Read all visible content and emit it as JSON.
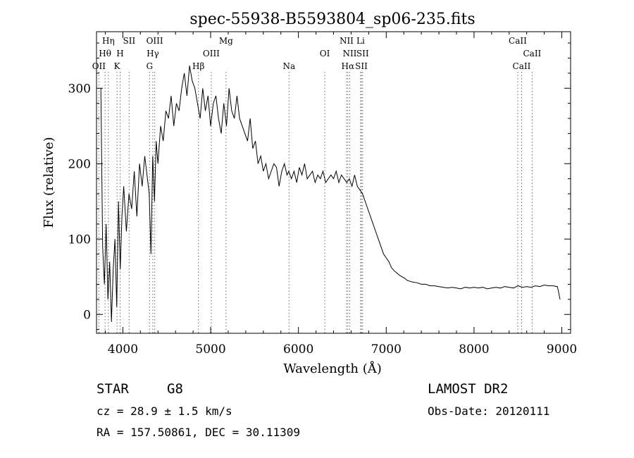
{
  "chart_data": {
    "type": "line",
    "title": "spec-55938-B5593804_sp06-235.fits",
    "xlabel": "Wavelength (Å)",
    "ylabel": "Flux (relative)",
    "xlim": [
      3700,
      9100
    ],
    "ylim": [
      -25,
      375
    ],
    "x_ticks": [
      "4000",
      "5000",
      "6000",
      "7000",
      "8000",
      "9000"
    ],
    "y_ticks": [
      "0",
      "100",
      "200",
      "300"
    ],
    "grid": false,
    "series": [
      {
        "x": [
          3750,
          3770,
          3790,
          3810,
          3830,
          3850,
          3870,
          3890,
          3910,
          3930,
          3950,
          3970,
          3990,
          4010,
          4040,
          4070,
          4100,
          4130,
          4160,
          4190,
          4220,
          4250,
          4280,
          4300,
          4320,
          4340,
          4360,
          4380,
          4400,
          4430,
          4460,
          4490,
          4520,
          4550,
          4580,
          4610,
          4640,
          4670,
          4700,
          4730,
          4760,
          4790,
          4820,
          4850,
          4880,
          4910,
          4940,
          4970,
          5000,
          5030,
          5060,
          5090,
          5120,
          5150,
          5180,
          5210,
          5240,
          5270,
          5300,
          5330,
          5360,
          5390,
          5420,
          5450,
          5480,
          5510,
          5540,
          5570,
          5600,
          5630,
          5660,
          5690,
          5720,
          5750,
          5780,
          5810,
          5840,
          5870,
          5890,
          5920,
          5950,
          5980,
          6010,
          6040,
          6070,
          6100,
          6130,
          6160,
          6190,
          6220,
          6250,
          6280,
          6310,
          6340,
          6370,
          6400,
          6430,
          6460,
          6490,
          6520,
          6550,
          6580,
          6610,
          6640,
          6670,
          6700,
          6730,
          6760,
          6790,
          6820,
          6850,
          6880,
          6910,
          6940,
          6970,
          7000,
          7030,
          7060,
          7090,
          7120,
          7150,
          7180,
          7210,
          7240,
          7270,
          7300,
          7350,
          7400,
          7450,
          7500,
          7550,
          7600,
          7650,
          7700,
          7750,
          7800,
          7850,
          7900,
          7950,
          8000,
          8050,
          8100,
          8150,
          8200,
          8250,
          8300,
          8350,
          8400,
          8450,
          8500,
          8550,
          8600,
          8650,
          8700,
          8750,
          8800,
          8850,
          8900,
          8950,
          8980
        ],
        "y": [
          300,
          90,
          40,
          120,
          20,
          70,
          -10,
          60,
          100,
          10,
          150,
          60,
          130,
          170,
          110,
          160,
          140,
          190,
          130,
          200,
          170,
          210,
          180,
          160,
          80,
          210,
          150,
          230,
          200,
          250,
          230,
          270,
          260,
          290,
          250,
          280,
          270,
          300,
          320,
          290,
          330,
          310,
          300,
          280,
          260,
          300,
          270,
          290,
          250,
          280,
          290,
          260,
          240,
          280,
          250,
          300,
          270,
          260,
          290,
          260,
          250,
          240,
          230,
          260,
          220,
          230,
          200,
          210,
          190,
          200,
          180,
          190,
          200,
          195,
          170,
          190,
          200,
          185,
          190,
          180,
          190,
          175,
          195,
          185,
          200,
          180,
          185,
          190,
          175,
          185,
          180,
          190,
          175,
          180,
          185,
          180,
          190,
          175,
          185,
          180,
          175,
          180,
          170,
          185,
          170,
          165,
          160,
          150,
          140,
          130,
          120,
          110,
          100,
          90,
          80,
          75,
          70,
          62,
          58,
          55,
          52,
          50,
          48,
          45,
          44,
          43,
          42,
          40,
          40,
          38,
          38,
          37,
          36,
          35,
          36,
          35,
          34,
          36,
          35,
          36,
          35,
          36,
          34,
          35,
          36,
          35,
          37,
          36,
          35,
          38,
          36,
          37,
          36,
          38,
          37,
          39,
          38,
          38,
          37,
          20
        ]
      }
    ],
    "lines": [
      {
        "name": "OII",
        "x": 3727,
        "row": 3
      },
      {
        "name": "Hθ",
        "x": 3797,
        "row": 2
      },
      {
        "name": "Hη",
        "x": 3835,
        "row": 1
      },
      {
        "name": "K",
        "x": 3934,
        "row": 3
      },
      {
        "name": "H",
        "x": 3969,
        "row": 2
      },
      {
        "name": "SII",
        "x": 4072,
        "row": 1
      },
      {
        "name": "G",
        "x": 4304,
        "row": 3
      },
      {
        "name": "Hγ",
        "x": 4341,
        "row": 2
      },
      {
        "name": "OIII",
        "x": 4363,
        "row": 1
      },
      {
        "name": "Hβ",
        "x": 4861,
        "row": 3
      },
      {
        "name": "OIII",
        "x": 5007,
        "row": 2
      },
      {
        "name": "Mg",
        "x": 5175,
        "row": 1
      },
      {
        "name": "Na",
        "x": 5893,
        "row": 3
      },
      {
        "name": "OI",
        "x": 6300,
        "row": 2
      },
      {
        "name": "NII",
        "x": 6548,
        "row": 1
      },
      {
        "name": "Hα",
        "x": 6563,
        "row": 3
      },
      {
        "name": "NII",
        "x": 6584,
        "row": 2
      },
      {
        "name": "Li",
        "x": 6708,
        "row": 1
      },
      {
        "name": "SII",
        "x": 6717,
        "row": 3
      },
      {
        "name": "SII",
        "x": 6731,
        "row": 2
      },
      {
        "name": "CaII",
        "x": 8498,
        "row": 1
      },
      {
        "name": "CaII",
        "x": 8542,
        "row": 3
      },
      {
        "name": "CaII",
        "x": 8662,
        "row": 2
      }
    ]
  },
  "info": {
    "object_class": "STAR",
    "subclass": "G8",
    "survey": "LAMOST DR2",
    "redshift": "cz = 28.9 ± 1.5 km/s",
    "obs_date": "Obs-Date: 20120111",
    "coords": "RA = 157.50861, DEC =  30.11309"
  }
}
